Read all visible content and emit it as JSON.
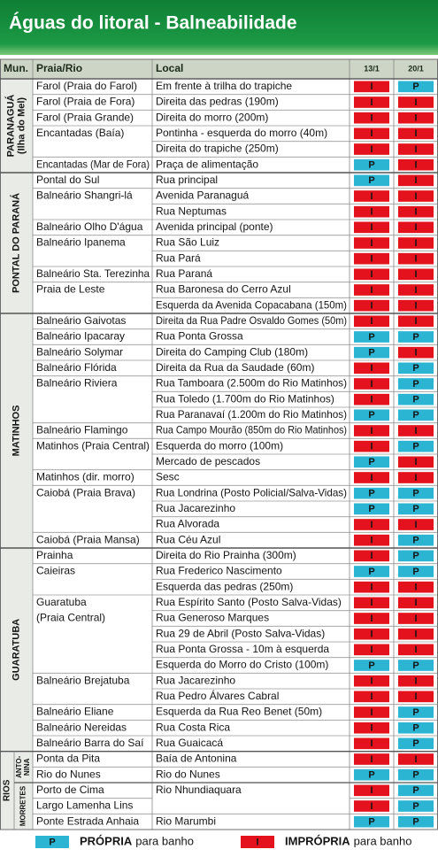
{
  "header": {
    "title": "Águas do litoral - Balneabilidade"
  },
  "table": {
    "columns": [
      "Mun.",
      "Praia/Rio",
      "Local",
      "13/1",
      "20/1"
    ],
    "groups": [
      {
        "label": [
          "PARANAGUÁ",
          "(Ilha do Mel)"
        ],
        "rows": [
          {
            "beach": "Farol (Praia do Farol)",
            "local": "Em frente à trilha do trapiche",
            "status": [
              "I",
              "P"
            ]
          },
          {
            "beach": "Farol (Praia de Fora)",
            "local": "Direita das pedras (190m)",
            "status": [
              "I",
              "I"
            ]
          },
          {
            "beach": "Farol (Praia Grande)",
            "local": "Direita do morro (200m)",
            "status": [
              "I",
              "I"
            ]
          },
          {
            "beach": "Encantadas (Baía)",
            "local": "Pontinha - esquerda do morro (40m)",
            "status": [
              "I",
              "I"
            ]
          },
          {
            "local": "Direita do trapiche (250m)",
            "status": [
              "I",
              "I"
            ]
          },
          {
            "beach": "Encantadas (Mar de Fora)",
            "local": "Praça de alimentação",
            "status": [
              "P",
              "I"
            ]
          }
        ]
      },
      {
        "label": [
          "PONTAL DO PARANÁ"
        ],
        "rows": [
          {
            "beach": "Pontal do Sul",
            "local": "Rua principal",
            "status": [
              "P",
              "I"
            ]
          },
          {
            "beach": "Balneário Shangri-lá",
            "local": "Avenida Paranaguá",
            "status": [
              "I",
              "I"
            ]
          },
          {
            "local": "Rua Neptumas",
            "status": [
              "I",
              "I"
            ]
          },
          {
            "beach": "Balneário Olho D'água",
            "local": "Avenida principal (ponte)",
            "status": [
              "I",
              "I"
            ]
          },
          {
            "beach": "Balneário Ipanema",
            "local": "Rua São Luiz",
            "status": [
              "I",
              "I"
            ]
          },
          {
            "local": "Rua Pará",
            "status": [
              "I",
              "I"
            ]
          },
          {
            "beach": "Balneário Sta. Terezinha",
            "local": "Rua Paraná",
            "status": [
              "I",
              "I"
            ]
          },
          {
            "beach": "Praia de Leste",
            "local": "Rua Baronesa do Cerro Azul",
            "status": [
              "I",
              "I"
            ]
          },
          {
            "local": "Esquerda da Avenida Copacabana (150m)",
            "status": [
              "I",
              "I"
            ]
          }
        ]
      },
      {
        "label": [
          "MATINHOS"
        ],
        "rows": [
          {
            "beach": "Balneário Gaivotas",
            "local": "Direita da Rua Padre Osvaldo Gomes (50m)",
            "status": [
              "I",
              "I"
            ]
          },
          {
            "beach": "Balneário Ipacaray",
            "local": "Rua Ponta Grossa",
            "status": [
              "P",
              "P"
            ]
          },
          {
            "beach": "Balneário Solymar",
            "local": "Direita do Camping Club (180m)",
            "status": [
              "P",
              "I"
            ]
          },
          {
            "beach": "Balneário Flórida",
            "local": "Direita da Rua da Saudade (60m)",
            "status": [
              "I",
              "P"
            ]
          },
          {
            "beach": "Balneário Riviera",
            "local": "Rua Tamboara (2.500m do Rio Matinhos)",
            "status": [
              "I",
              "P"
            ]
          },
          {
            "local": "Rua Toledo (1.700m do Rio Matinhos)",
            "status": [
              "I",
              "P"
            ]
          },
          {
            "local": "Rua Paranavaí (1.200m do Rio Matinhos)",
            "status": [
              "P",
              "P"
            ]
          },
          {
            "beach": "Balneário Flamingo",
            "local": "Rua Campo Mourão (850m do Rio Matinhos)",
            "status": [
              "I",
              "I"
            ]
          },
          {
            "beach": "Matinhos (Praia Central)",
            "local": "Esquerda do morro (100m)",
            "status": [
              "I",
              "P"
            ]
          },
          {
            "local": "Mercado de pescados",
            "status": [
              "P",
              "I"
            ]
          },
          {
            "beach": "Matinhos (dir. morro)",
            "local": "Sesc",
            "status": [
              "I",
              "I"
            ]
          },
          {
            "beach": "Caiobá (Praia Brava)",
            "local": "Rua Londrina (Posto Policial/Salva-Vidas)",
            "status": [
              "P",
              "P"
            ]
          },
          {
            "local": "Rua Jacarezinho",
            "status": [
              "P",
              "P"
            ]
          },
          {
            "local": "Rua Alvorada",
            "status": [
              "I",
              "I"
            ]
          },
          {
            "beach": "Caiobá (Praia Mansa)",
            "local": "Rua Céu Azul",
            "status": [
              "I",
              "P"
            ]
          }
        ]
      },
      {
        "label": [
          "GUARATUBA"
        ],
        "rows": [
          {
            "beach": "Prainha",
            "local": "Direita do Rio Prainha (300m)",
            "status": [
              "I",
              "P"
            ]
          },
          {
            "beach": "Caieiras",
            "local": "Rua Frederico Nascimento",
            "status": [
              "P",
              "P"
            ]
          },
          {
            "local": "Esquerda das pedras (250m)",
            "status": [
              "I",
              "I"
            ]
          },
          {
            "beach": [
              "Guaratuba",
              "(Praia Central)"
            ],
            "local": "Rua Espírito Santo (Posto Salva-Vidas)",
            "status": [
              "I",
              "I"
            ]
          },
          {
            "local": "Rua Generoso Marques",
            "status": [
              "I",
              "I"
            ]
          },
          {
            "local": "Rua 29 de Abril (Posto Salva-Vidas)",
            "status": [
              "I",
              "I"
            ]
          },
          {
            "local": "Rua Ponta Grossa - 10m à esquerda",
            "status": [
              "I",
              "I"
            ]
          },
          {
            "local": "Esquerda do Morro do Cristo (100m)",
            "status": [
              "P",
              "P"
            ]
          },
          {
            "beach": "Balneário Brejatuba",
            "local": "Rua Jacarezinho",
            "status": [
              "I",
              "I"
            ]
          },
          {
            "local": "Rua Pedro Álvares Cabral",
            "status": [
              "I",
              "I"
            ]
          },
          {
            "beach": "Balneário Eliane",
            "local": "Esquerda da Rua Reo Benet (50m)",
            "status": [
              "I",
              "P"
            ]
          },
          {
            "beach": "Balneário Nereidas",
            "local": "Rua Costa Rica",
            "status": [
              "I",
              "P"
            ]
          },
          {
            "beach": "Balneário Barra do Saí",
            "local": "Rua Guaicacá",
            "status": [
              "I",
              "P"
            ]
          }
        ]
      },
      {
        "label": [
          "RIOS"
        ],
        "subgroups": [
          {
            "label": [
              "ANTO-",
              "NINA"
            ],
            "rows": [
              {
                "beach": "Ponta da Pita",
                "local": "Baía de Antonina",
                "status": [
                  "I",
                  "I"
                ]
              },
              {
                "beach": "Rio do Nunes",
                "local": "Rio do Nunes",
                "status": [
                  "P",
                  "P"
                ]
              }
            ]
          },
          {
            "label": [
              "MORRETES"
            ],
            "rows": [
              {
                "beach": "Porto de Cima",
                "local": "Rio Nhundiaquara",
                "status": [
                  "I",
                  "P"
                ]
              },
              {
                "beach": "Largo Lamenha Lins",
                "status": [
                  "I",
                  "P"
                ]
              },
              {
                "beach": "Ponte Estrada Anhaia",
                "local": "Rio Marumbi",
                "status": [
                  "P",
                  "P"
                ]
              }
            ]
          }
        ]
      }
    ]
  },
  "legend": {
    "items": [
      {
        "code": "P",
        "color": "#2bb5d2",
        "label": "PRÓPRIA",
        "text": "para banho"
      },
      {
        "code": "I",
        "color": "#e3121c",
        "label": "IMPRÓPRIA",
        "text": "para banho"
      }
    ]
  }
}
